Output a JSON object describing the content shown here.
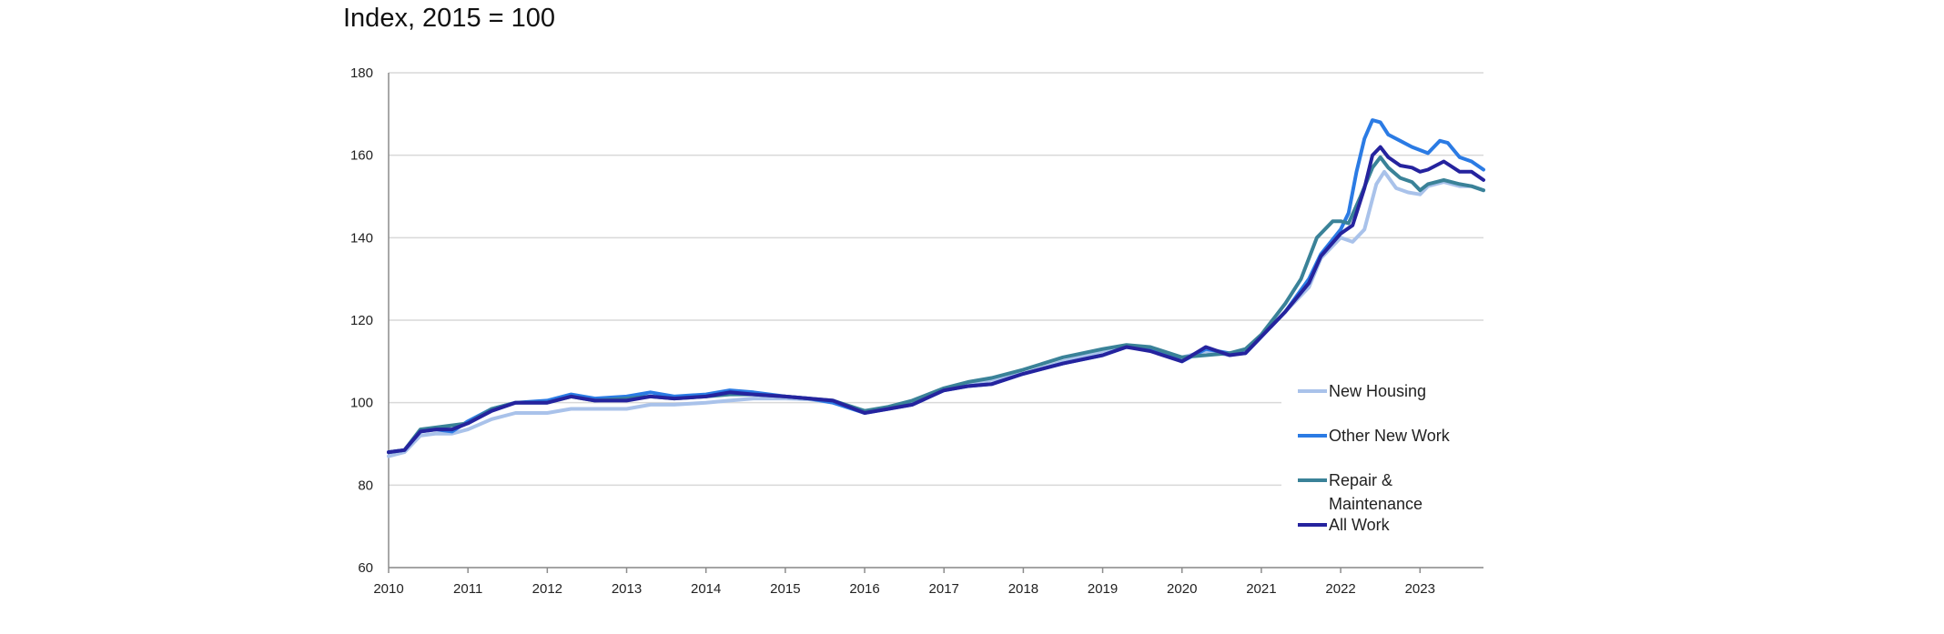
{
  "chart_data": {
    "type": "line",
    "title": "Index, 2015 = 100",
    "xlabel": "",
    "ylabel": "",
    "xlim": [
      2010,
      2023.8
    ],
    "ylim": [
      60,
      180
    ],
    "yticks": [
      "60",
      "80",
      "100",
      "120",
      "140",
      "160",
      "180"
    ],
    "xticks": [
      "2010",
      "2011",
      "2012",
      "2013",
      "2014",
      "2015",
      "2016",
      "2017",
      "2018",
      "2019",
      "2020",
      "2021",
      "2022",
      "2023"
    ],
    "grid": true,
    "legend_position": "bottom-right",
    "series": [
      {
        "name": "New Housing",
        "color": "#a9c2ea",
        "points": [
          [
            2010,
            87
          ],
          [
            2010.2,
            88
          ],
          [
            2010.4,
            92
          ],
          [
            2010.6,
            92.5
          ],
          [
            2010.8,
            92.5
          ],
          [
            2011,
            93.5
          ],
          [
            2011.3,
            96
          ],
          [
            2011.6,
            97.5
          ],
          [
            2012,
            97.5
          ],
          [
            2012.3,
            98.5
          ],
          [
            2012.6,
            98.5
          ],
          [
            2013,
            98.5
          ],
          [
            2013.3,
            99.5
          ],
          [
            2013.6,
            99.5
          ],
          [
            2014,
            100
          ],
          [
            2014.3,
            100.5
          ],
          [
            2014.6,
            101
          ],
          [
            2015,
            101
          ],
          [
            2015.3,
            100.8
          ],
          [
            2015.6,
            100
          ],
          [
            2016,
            98
          ],
          [
            2016.3,
            98.5
          ],
          [
            2016.6,
            100
          ],
          [
            2017,
            103
          ],
          [
            2017.3,
            104.5
          ],
          [
            2017.6,
            105.5
          ],
          [
            2018,
            107
          ],
          [
            2018.5,
            110
          ],
          [
            2019,
            112.5
          ],
          [
            2019.3,
            113.5
          ],
          [
            2019.6,
            113
          ],
          [
            2020,
            111
          ],
          [
            2020.3,
            112.5
          ],
          [
            2020.6,
            111.5
          ],
          [
            2020.8,
            112
          ],
          [
            2021,
            116
          ],
          [
            2021.3,
            122
          ],
          [
            2021.6,
            128
          ],
          [
            2021.75,
            135
          ],
          [
            2022,
            140
          ],
          [
            2022.15,
            139
          ],
          [
            2022.3,
            142
          ],
          [
            2022.45,
            153
          ],
          [
            2022.55,
            156
          ],
          [
            2022.7,
            152
          ],
          [
            2022.85,
            151
          ],
          [
            2023,
            150.5
          ],
          [
            2023.1,
            152.5
          ],
          [
            2023.3,
            153.5
          ],
          [
            2023.5,
            152.5
          ],
          [
            2023.65,
            152.5
          ],
          [
            2023.8,
            151.5
          ]
        ]
      },
      {
        "name": "Other New Work",
        "color": "#2b7be4",
        "points": [
          [
            2010,
            88
          ],
          [
            2010.2,
            88.5
          ],
          [
            2010.4,
            93
          ],
          [
            2010.6,
            93.5
          ],
          [
            2010.8,
            93
          ],
          [
            2011,
            95.5
          ],
          [
            2011.3,
            98.5
          ],
          [
            2011.6,
            100
          ],
          [
            2012,
            100.5
          ],
          [
            2012.3,
            102
          ],
          [
            2012.6,
            101
          ],
          [
            2013,
            101.5
          ],
          [
            2013.3,
            102.5
          ],
          [
            2013.6,
            101.5
          ],
          [
            2014,
            102
          ],
          [
            2014.3,
            103
          ],
          [
            2014.6,
            102.5
          ],
          [
            2015,
            101.5
          ],
          [
            2015.3,
            101
          ],
          [
            2015.6,
            100
          ],
          [
            2016,
            97.5
          ],
          [
            2016.3,
            98.5
          ],
          [
            2016.6,
            99.5
          ],
          [
            2017,
            103
          ],
          [
            2017.3,
            104
          ],
          [
            2017.6,
            104.5
          ],
          [
            2018,
            107
          ],
          [
            2018.5,
            109.5
          ],
          [
            2019,
            111.5
          ],
          [
            2019.3,
            113.5
          ],
          [
            2019.6,
            113
          ],
          [
            2020,
            110
          ],
          [
            2020.3,
            113
          ],
          [
            2020.6,
            112
          ],
          [
            2020.8,
            112
          ],
          [
            2021,
            116
          ],
          [
            2021.3,
            122
          ],
          [
            2021.6,
            130
          ],
          [
            2021.75,
            136
          ],
          [
            2022,
            142
          ],
          [
            2022.1,
            146
          ],
          [
            2022.2,
            156
          ],
          [
            2022.3,
            164
          ],
          [
            2022.4,
            168.5
          ],
          [
            2022.5,
            168
          ],
          [
            2022.6,
            165
          ],
          [
            2022.75,
            163.5
          ],
          [
            2022.9,
            162
          ],
          [
            2023.1,
            160.5
          ],
          [
            2023.25,
            163.5
          ],
          [
            2023.35,
            163
          ],
          [
            2023.5,
            159.5
          ],
          [
            2023.65,
            158.5
          ],
          [
            2023.8,
            156.5
          ]
        ]
      },
      {
        "name": "Repair & Maintenance",
        "color": "#3a8298",
        "points": [
          [
            2010,
            88
          ],
          [
            2010.2,
            88.5
          ],
          [
            2010.4,
            93.5
          ],
          [
            2010.6,
            94
          ],
          [
            2010.8,
            94.5
          ],
          [
            2011,
            95
          ],
          [
            2011.3,
            98.5
          ],
          [
            2011.6,
            100
          ],
          [
            2012,
            100
          ],
          [
            2012.3,
            101.5
          ],
          [
            2012.6,
            100.5
          ],
          [
            2013,
            101
          ],
          [
            2013.3,
            101.5
          ],
          [
            2013.6,
            101
          ],
          [
            2014,
            101.5
          ],
          [
            2014.3,
            102
          ],
          [
            2014.6,
            102
          ],
          [
            2015,
            101.5
          ],
          [
            2015.3,
            101
          ],
          [
            2015.6,
            100.5
          ],
          [
            2016,
            98
          ],
          [
            2016.3,
            99
          ],
          [
            2016.6,
            100.5
          ],
          [
            2017,
            103.5
          ],
          [
            2017.3,
            105
          ],
          [
            2017.6,
            106
          ],
          [
            2018,
            108
          ],
          [
            2018.5,
            111
          ],
          [
            2019,
            113
          ],
          [
            2019.3,
            114
          ],
          [
            2019.6,
            113.5
          ],
          [
            2020,
            111
          ],
          [
            2020.3,
            111.5
          ],
          [
            2020.6,
            112
          ],
          [
            2020.8,
            113
          ],
          [
            2021,
            116.5
          ],
          [
            2021.3,
            124
          ],
          [
            2021.5,
            130
          ],
          [
            2021.7,
            140
          ],
          [
            2021.9,
            144
          ],
          [
            2022,
            144
          ],
          [
            2022.1,
            143.5
          ],
          [
            2022.25,
            150
          ],
          [
            2022.4,
            157
          ],
          [
            2022.5,
            159.5
          ],
          [
            2022.6,
            157
          ],
          [
            2022.75,
            154.5
          ],
          [
            2022.9,
            153.5
          ],
          [
            2023,
            151.5
          ],
          [
            2023.1,
            153
          ],
          [
            2023.3,
            154
          ],
          [
            2023.5,
            153
          ],
          [
            2023.65,
            152.5
          ],
          [
            2023.8,
            151.5
          ]
        ]
      },
      {
        "name": "All Work",
        "color": "#25239e",
        "points": [
          [
            2010,
            88
          ],
          [
            2010.2,
            88.5
          ],
          [
            2010.4,
            93
          ],
          [
            2010.6,
            93.5
          ],
          [
            2010.8,
            93.5
          ],
          [
            2011,
            95
          ],
          [
            2011.3,
            98
          ],
          [
            2011.6,
            100
          ],
          [
            2012,
            100
          ],
          [
            2012.3,
            101.5
          ],
          [
            2012.6,
            100.5
          ],
          [
            2013,
            100.5
          ],
          [
            2013.3,
            101.5
          ],
          [
            2013.6,
            101
          ],
          [
            2014,
            101.5
          ],
          [
            2014.3,
            102.5
          ],
          [
            2014.6,
            102
          ],
          [
            2015,
            101.5
          ],
          [
            2015.3,
            101
          ],
          [
            2015.6,
            100.5
          ],
          [
            2016,
            97.5
          ],
          [
            2016.3,
            98.5
          ],
          [
            2016.6,
            99.5
          ],
          [
            2017,
            103
          ],
          [
            2017.3,
            104
          ],
          [
            2017.6,
            104.5
          ],
          [
            2018,
            107
          ],
          [
            2018.5,
            109.5
          ],
          [
            2019,
            111.5
          ],
          [
            2019.3,
            113.5
          ],
          [
            2019.6,
            112.5
          ],
          [
            2020,
            110
          ],
          [
            2020.3,
            113.5
          ],
          [
            2020.6,
            111.5
          ],
          [
            2020.8,
            112
          ],
          [
            2021,
            116
          ],
          [
            2021.3,
            122
          ],
          [
            2021.6,
            129
          ],
          [
            2021.75,
            135.5
          ],
          [
            2022,
            141
          ],
          [
            2022.15,
            143
          ],
          [
            2022.3,
            152
          ],
          [
            2022.4,
            160
          ],
          [
            2022.5,
            162
          ],
          [
            2022.6,
            159.5
          ],
          [
            2022.75,
            157.5
          ],
          [
            2022.9,
            157
          ],
          [
            2023,
            156
          ],
          [
            2023.1,
            156.5
          ],
          [
            2023.3,
            158.5
          ],
          [
            2023.5,
            156
          ],
          [
            2023.65,
            156
          ],
          [
            2023.8,
            154
          ]
        ]
      }
    ]
  }
}
